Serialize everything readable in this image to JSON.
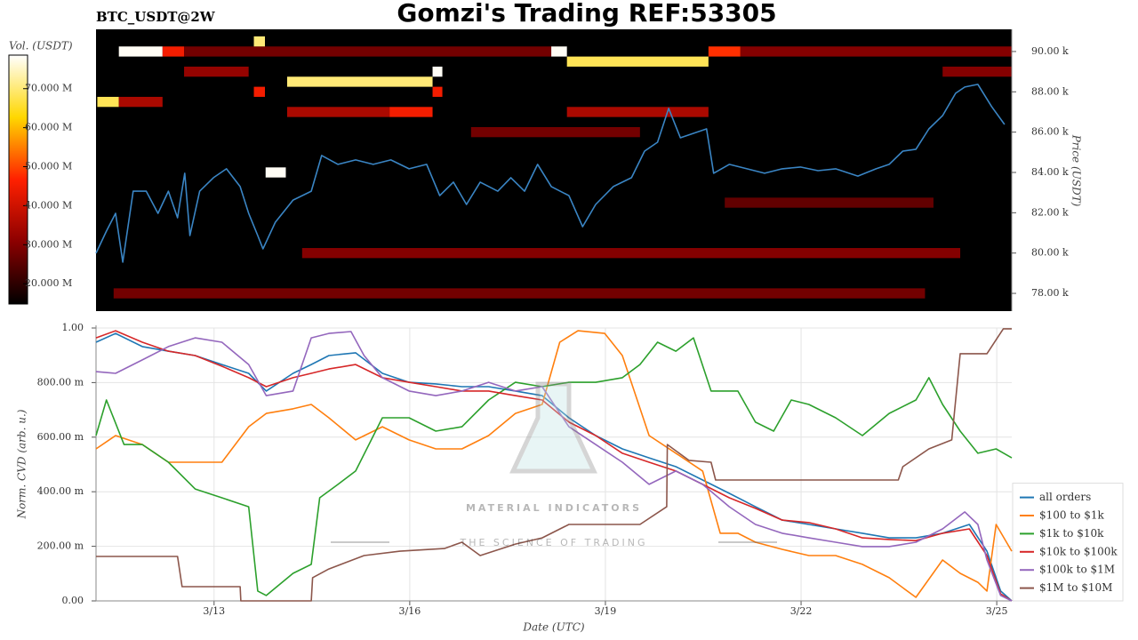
{
  "chart_data": [
    {
      "type": "heatmap",
      "title": "Gomzi's Trading REF:53305",
      "subtitle": "BTC_USDT@2W",
      "y_label": "Price (USDT)",
      "colorbar_label": "Vol. (USDT)",
      "xlim": [
        11.19,
        25.23
      ],
      "ylim": [
        77120,
        91100
      ],
      "yticks": [
        {
          "value": 78000,
          "label": "78.00 k"
        },
        {
          "value": 80000,
          "label": "80.00 k"
        },
        {
          "value": 82000,
          "label": "82.00 k"
        },
        {
          "value": 84000,
          "label": "84.00 k"
        },
        {
          "value": 86000,
          "label": "86.00 k"
        },
        {
          "value": 88000,
          "label": "88.00 k"
        },
        {
          "value": 90000,
          "label": "90.00 k"
        }
      ],
      "clim": [
        14800000,
        78600000
      ],
      "cticks": [
        {
          "value": 20000000,
          "label": "20.000 M"
        },
        {
          "value": 30000000,
          "label": "30.000 M"
        },
        {
          "value": 40000000,
          "label": "40.000 M"
        },
        {
          "value": 50000000,
          "label": "50.000 M"
        },
        {
          "value": 60000000,
          "label": "60.000 M"
        },
        {
          "value": 70000000,
          "label": "70.000 M"
        }
      ],
      "colormap": [
        "#000000",
        "#8b0000",
        "#ff2000",
        "#ffd700",
        "#ffffff"
      ],
      "cells": [
        {
          "x0": 11.54,
          "x1": 12.21,
          "y": 90000,
          "value": 78000000
        },
        {
          "x0": 12.21,
          "x1": 12.54,
          "y": 90000,
          "value": 45000000
        },
        {
          "x0": 12.54,
          "x1": 18.17,
          "y": 90000,
          "value": 28000000
        },
        {
          "x0": 13.61,
          "x1": 13.78,
          "y": 90500,
          "value": 70000000
        },
        {
          "x0": 18.17,
          "x1": 18.41,
          "y": 90000,
          "value": 78000000
        },
        {
          "x0": 18.41,
          "x1": 20.58,
          "y": 89500,
          "value": 68000000
        },
        {
          "x0": 20.58,
          "x1": 21.07,
          "y": 90000,
          "value": 48000000
        },
        {
          "x0": 21.07,
          "x1": 25.23,
          "y": 90000,
          "value": 30000000
        },
        {
          "x0": 16.35,
          "x1": 16.5,
          "y": 89000,
          "value": 78000000
        },
        {
          "x0": 14.12,
          "x1": 16.35,
          "y": 88500,
          "value": 70000000
        },
        {
          "x0": 11.21,
          "x1": 11.54,
          "y": 87500,
          "value": 68000000
        },
        {
          "x0": 11.54,
          "x1": 12.21,
          "y": 87500,
          "value": 35000000
        },
        {
          "x0": 14.12,
          "x1": 15.69,
          "y": 87000,
          "value": 35000000
        },
        {
          "x0": 15.69,
          "x1": 16.35,
          "y": 87000,
          "value": 45000000
        },
        {
          "x0": 13.61,
          "x1": 13.78,
          "y": 88000,
          "value": 45000000
        },
        {
          "x0": 16.35,
          "x1": 16.5,
          "y": 88000,
          "value": 45000000
        },
        {
          "x0": 13.79,
          "x1": 14.1,
          "y": 84000,
          "value": 78000000
        },
        {
          "x0": 12.54,
          "x1": 13.53,
          "y": 89000,
          "value": 32000000
        },
        {
          "x0": 18.41,
          "x1": 20.58,
          "y": 87000,
          "value": 35000000
        },
        {
          "x0": 16.94,
          "x1": 19.53,
          "y": 86000,
          "value": 28000000
        },
        {
          "x0": 14.35,
          "x1": 24.44,
          "y": 80000,
          "value": 30000000
        },
        {
          "x0": 11.46,
          "x1": 23.9,
          "y": 78000,
          "value": 28000000
        },
        {
          "x0": 20.83,
          "x1": 24.03,
          "y": 82500,
          "value": 26000000
        },
        {
          "x0": 24.17,
          "x1": 25.23,
          "y": 89000,
          "value": 30000000
        }
      ],
      "series": [
        {
          "color": "#3a85c4",
          "x": [
            11.19,
            11.35,
            11.49,
            11.6,
            11.76,
            11.96,
            12.14,
            12.3,
            12.44,
            12.55,
            12.63,
            12.78,
            12.99,
            13.19,
            13.4,
            13.53,
            13.67,
            13.75,
            13.94,
            14.21,
            14.49,
            14.65,
            14.9,
            15.17,
            15.44,
            15.71,
            15.99,
            16.26,
            16.46,
            16.67,
            16.87,
            17.08,
            17.35,
            17.55,
            17.76,
            17.96,
            18.17,
            18.44,
            18.65,
            18.85,
            19.12,
            19.4,
            19.6,
            19.8,
            19.97,
            20.15,
            20.35,
            20.55,
            20.66,
            20.9,
            21.17,
            21.44,
            21.71,
            21.99,
            22.26,
            22.53,
            22.87,
            23.15,
            23.35,
            23.56,
            23.76,
            23.96,
            24.17,
            24.37,
            24.51,
            24.71,
            24.92,
            25.12
          ],
          "values": [
            79990,
            81090,
            81970,
            79550,
            83070,
            83070,
            81970,
            83070,
            81750,
            83960,
            80870,
            83070,
            83740,
            84180,
            83300,
            81970,
            80870,
            80210,
            81530,
            82630,
            83070,
            84840,
            84400,
            84620,
            84400,
            84620,
            84180,
            84400,
            82850,
            83520,
            82410,
            83520,
            83070,
            83740,
            83070,
            84400,
            83300,
            82850,
            81310,
            82410,
            83300,
            83740,
            85060,
            85500,
            87180,
            85720,
            85940,
            86160,
            83960,
            84400,
            84180,
            83960,
            84180,
            84270,
            84090,
            84180,
            83820,
            84180,
            84400,
            85060,
            85150,
            86160,
            86820,
            87930,
            88240,
            88370,
            87270,
            86380
          ]
        }
      ]
    },
    {
      "type": "line",
      "x_label": "Date (UTC)",
      "y_label": "Norm. CVD (arb. u.)",
      "xlim": [
        11.19,
        25.23
      ],
      "xticks": [
        {
          "value": 13,
          "label": "3/13"
        },
        {
          "value": 16,
          "label": "3/16"
        },
        {
          "value": 19,
          "label": "3/19"
        },
        {
          "value": 22,
          "label": "3/22"
        },
        {
          "value": 25,
          "label": "3/25"
        }
      ],
      "ylim": [
        0,
        1
      ],
      "yticks": [
        {
          "value": 0,
          "label": "0.00"
        },
        {
          "value": 0.2,
          "label": "200.00 m"
        },
        {
          "value": 0.4,
          "label": "400.00 m"
        },
        {
          "value": 0.6,
          "label": "600.00 m"
        },
        {
          "value": 0.8,
          "label": "800.00 m"
        },
        {
          "value": 1,
          "label": "1.00"
        }
      ],
      "grid": true,
      "legend": "lower right",
      "watermark": [
        "MATERIAL INDICATORS",
        "THE SCIENCE OF TRADING"
      ],
      "series": [
        {
          "name": "all orders",
          "color": "#1f77b4",
          "x": [
            11.19,
            11.49,
            11.9,
            12.3,
            12.71,
            13.12,
            13.53,
            13.8,
            14.21,
            14.49,
            14.76,
            15.17,
            15.58,
            15.99,
            16.4,
            16.8,
            17.21,
            17.62,
            18.03,
            18.44,
            18.85,
            19.26,
            19.67,
            20.08,
            20.49,
            20.9,
            21.3,
            21.71,
            22.12,
            22.53,
            22.94,
            23.35,
            23.76,
            24.17,
            24.58,
            24.85,
            25.06,
            25.23
          ],
          "values": [
            0.948,
            0.98,
            0.932,
            0.915,
            0.899,
            0.866,
            0.834,
            0.769,
            0.834,
            0.866,
            0.899,
            0.909,
            0.834,
            0.801,
            0.795,
            0.785,
            0.785,
            0.769,
            0.752,
            0.671,
            0.606,
            0.557,
            0.524,
            0.492,
            0.443,
            0.394,
            0.345,
            0.296,
            0.28,
            0.264,
            0.248,
            0.231,
            0.231,
            0.248,
            0.28,
            0.182,
            0.036,
            0
          ]
        },
        {
          "name": "$100 to $1k",
          "color": "#ff7f0e",
          "x": [
            11.19,
            11.49,
            11.9,
            12.3,
            12.71,
            13.12,
            13.53,
            13.8,
            14.21,
            14.49,
            14.76,
            15.17,
            15.58,
            15.99,
            16.4,
            16.8,
            17.21,
            17.62,
            18.03,
            18.3,
            18.58,
            18.99,
            19.26,
            19.67,
            20.08,
            20.49,
            20.76,
            21.03,
            21.3,
            21.71,
            22.12,
            22.53,
            22.94,
            23.35,
            23.76,
            24.17,
            24.44,
            24.71,
            24.85,
            24.99,
            25.23
          ],
          "values": [
            0.557,
            0.606,
            0.573,
            0.508,
            0.508,
            0.508,
            0.638,
            0.687,
            0.704,
            0.72,
            0.671,
            0.59,
            0.638,
            0.59,
            0.557,
            0.557,
            0.606,
            0.687,
            0.72,
            0.948,
            0.99,
            0.98,
            0.899,
            0.606,
            0.541,
            0.476,
            0.248,
            0.248,
            0.215,
            0.189,
            0.166,
            0.166,
            0.134,
            0.085,
            0.013,
            0.15,
            0.101,
            0.068,
            0.036,
            0.28,
            0.182
          ]
        },
        {
          "name": "$1k to $10k",
          "color": "#2ca02c",
          "x": [
            11.19,
            11.35,
            11.62,
            11.9,
            12.3,
            12.71,
            13.12,
            13.53,
            13.67,
            13.8,
            14.21,
            14.49,
            14.62,
            14.9,
            15.17,
            15.58,
            15.99,
            16.4,
            16.8,
            17.21,
            17.62,
            18.03,
            18.44,
            18.85,
            19.26,
            19.53,
            19.8,
            20.08,
            20.35,
            20.62,
            21.03,
            21.3,
            21.58,
            21.85,
            22.12,
            22.53,
            22.94,
            23.35,
            23.76,
            23.96,
            24.17,
            24.44,
            24.71,
            24.99,
            25.23
          ],
          "values": [
            0.606,
            0.736,
            0.573,
            0.573,
            0.508,
            0.41,
            0.378,
            0.345,
            0.036,
            0.02,
            0.101,
            0.134,
            0.378,
            0.427,
            0.476,
            0.671,
            0.671,
            0.622,
            0.638,
            0.736,
            0.801,
            0.785,
            0.801,
            0.801,
            0.818,
            0.866,
            0.948,
            0.915,
            0.964,
            0.769,
            0.769,
            0.655,
            0.622,
            0.736,
            0.72,
            0.671,
            0.606,
            0.687,
            0.736,
            0.818,
            0.72,
            0.622,
            0.541,
            0.557,
            0.524
          ]
        },
        {
          "name": "$10k to $100k",
          "color": "#d62728",
          "x": [
            11.19,
            11.49,
            11.9,
            12.3,
            12.71,
            13.12,
            13.53,
            13.8,
            14.21,
            14.49,
            14.76,
            15.17,
            15.58,
            15.99,
            16.4,
            16.8,
            17.21,
            17.62,
            18.03,
            18.44,
            18.85,
            19.26,
            19.67,
            20.08,
            20.49,
            20.9,
            21.3,
            21.71,
            22.12,
            22.53,
            22.94,
            23.35,
            23.76,
            24.17,
            24.58,
            24.85,
            25.06,
            25.23
          ],
          "values": [
            0.964,
            0.99,
            0.948,
            0.915,
            0.899,
            0.86,
            0.818,
            0.785,
            0.818,
            0.834,
            0.85,
            0.866,
            0.818,
            0.801,
            0.785,
            0.769,
            0.769,
            0.752,
            0.736,
            0.655,
            0.606,
            0.541,
            0.508,
            0.476,
            0.427,
            0.378,
            0.339,
            0.296,
            0.287,
            0.264,
            0.231,
            0.225,
            0.221,
            0.248,
            0.264,
            0.166,
            0.026,
            0
          ]
        },
        {
          "name": "$100k to $1M",
          "color": "#9467bd",
          "x": [
            11.19,
            11.49,
            11.9,
            12.3,
            12.71,
            13.12,
            13.53,
            13.8,
            14.21,
            14.49,
            14.76,
            15.1,
            15.3,
            15.58,
            15.99,
            16.4,
            16.8,
            17.21,
            17.62,
            18.03,
            18.44,
            18.85,
            19.26,
            19.67,
            20.08,
            20.49,
            20.9,
            21.3,
            21.71,
            22.12,
            22.53,
            22.94,
            23.35,
            23.76,
            24.17,
            24.51,
            24.71,
            24.85,
            25.06,
            25.23
          ],
          "values": [
            0.84,
            0.834,
            0.883,
            0.932,
            0.964,
            0.948,
            0.866,
            0.752,
            0.769,
            0.964,
            0.98,
            0.987,
            0.899,
            0.818,
            0.769,
            0.752,
            0.769,
            0.801,
            0.769,
            0.785,
            0.638,
            0.573,
            0.508,
            0.427,
            0.476,
            0.427,
            0.345,
            0.28,
            0.248,
            0.231,
            0.215,
            0.199,
            0.199,
            0.215,
            0.264,
            0.326,
            0.28,
            0.15,
            0.02,
            0
          ]
        },
        {
          "name": "$1M to $10M",
          "color": "#8c564b",
          "x": [
            11.19,
            12.44,
            12.51,
            13.4,
            13.41,
            14.49,
            14.51,
            14.76,
            15.3,
            15.85,
            16.53,
            16.8,
            17.08,
            17.62,
            18.03,
            18.44,
            19.53,
            19.94,
            19.95,
            20.28,
            20.62,
            20.69,
            21.99,
            23.49,
            23.56,
            23.96,
            24.31,
            24.44,
            24.85,
            25.1,
            25.23
          ],
          "values": [
            0.163,
            0.163,
            0.052,
            0.052,
            0,
            0,
            0.085,
            0.117,
            0.166,
            0.182,
            0.192,
            0.215,
            0.166,
            0.208,
            0.231,
            0.28,
            0.28,
            0.345,
            0.573,
            0.515,
            0.508,
            0.443,
            0.443,
            0.443,
            0.492,
            0.557,
            0.59,
            0.906,
            0.906,
            0.997,
            0.997
          ]
        }
      ]
    }
  ]
}
